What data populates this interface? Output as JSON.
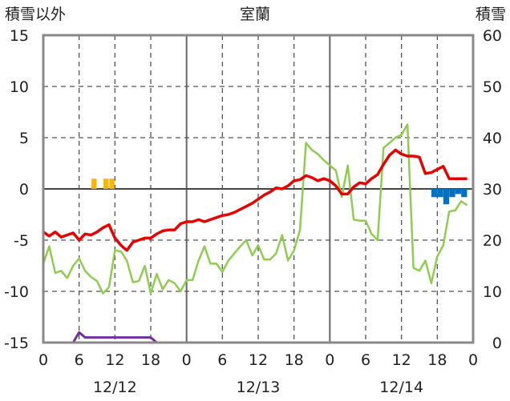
{
  "chart_data": {
    "type": "line",
    "title": "室蘭",
    "ylabel_left": "積雪以外",
    "ylabel_right": "積雪",
    "ylim_left": [
      -15,
      15
    ],
    "ylim_right": [
      0,
      60
    ],
    "yticks_left": [
      "15",
      "10",
      "5",
      "0",
      "-5",
      "-10",
      "-15"
    ],
    "yticks_right": [
      "60",
      "50",
      "40",
      "30",
      "20",
      "10",
      "0"
    ],
    "xlim_hours": [
      0,
      72
    ],
    "xtick_labels": [
      "0",
      "6",
      "12",
      "18",
      "0",
      "6",
      "12",
      "18",
      "0",
      "6",
      "12",
      "18",
      "0"
    ],
    "date_labels": [
      {
        "label": "12/12",
        "hour": 12
      },
      {
        "label": "12/13",
        "hour": 36
      },
      {
        "label": "12/14",
        "hour": 60
      }
    ],
    "grid": true,
    "colors": {
      "temperature": "#e60000",
      "green_series": "#8fcc50",
      "purple_series": "#7030a0",
      "precip_bars": "#ffb400",
      "neg_bars": "#0070c0",
      "grid": "#555555",
      "zero_line": "#444444",
      "frame": "#888888"
    },
    "series": [
      {
        "key": "temperature",
        "axis": "left",
        "x": [
          0,
          1,
          2,
          3,
          4,
          5,
          6,
          7,
          8,
          9,
          10,
          11,
          12,
          13,
          14,
          15,
          16,
          17,
          18,
          19,
          20,
          21,
          22,
          23,
          24,
          25,
          26,
          27,
          28,
          29,
          30,
          31,
          32,
          33,
          34,
          35,
          36,
          37,
          38,
          39,
          40,
          41,
          42,
          43,
          44,
          45,
          46,
          47,
          48,
          49,
          50,
          51,
          52,
          53,
          54,
          55,
          56,
          57,
          58,
          59,
          60,
          61,
          62,
          63,
          64,
          65,
          66,
          67,
          68,
          69,
          70,
          71
        ],
        "y": [
          -4.2,
          -4.6,
          -4.2,
          -4.7,
          -4.5,
          -4.3,
          -5.0,
          -4.4,
          -4.5,
          -4.2,
          -3.8,
          -3.5,
          -4.8,
          -5.5,
          -6.0,
          -5.2,
          -5.0,
          -4.8,
          -4.8,
          -4.4,
          -4.1,
          -4.0,
          -4.0,
          -3.4,
          -3.2,
          -3.2,
          -3.0,
          -3.2,
          -3.0,
          -2.8,
          -2.6,
          -2.5,
          -2.3,
          -2.0,
          -1.7,
          -1.4,
          -1.0,
          -0.6,
          -0.3,
          0.1,
          0.0,
          0.3,
          0.8,
          0.9,
          1.3,
          1.1,
          0.8,
          1.0,
          0.8,
          0.3,
          -0.5,
          -0.5,
          0.2,
          0.6,
          0.5,
          1.0,
          1.4,
          2.4,
          3.3,
          3.8,
          3.4,
          3.2,
          3.2,
          3.1,
          1.5,
          1.6,
          1.9,
          2.2,
          1.0,
          1.0,
          1.0,
          1.0
        ]
      },
      {
        "key": "green_series",
        "axis": "left",
        "x": [
          0,
          1,
          2,
          3,
          4,
          5,
          6,
          7,
          8,
          9,
          10,
          11,
          12,
          13,
          14,
          15,
          16,
          17,
          18,
          19,
          20,
          21,
          22,
          23,
          24,
          25,
          26,
          27,
          28,
          29,
          30,
          31,
          32,
          33,
          34,
          35,
          36,
          37,
          38,
          39,
          40,
          41,
          42,
          43,
          44,
          45,
          46,
          47,
          48,
          49,
          50,
          51,
          52,
          53,
          54,
          55,
          56,
          57,
          58,
          59,
          60,
          61,
          62,
          63,
          64,
          65,
          66,
          67,
          68,
          69,
          70,
          71
        ],
        "y": [
          -7.3,
          -5.6,
          -8.2,
          -8.0,
          -8.7,
          -7.5,
          -6.8,
          -8.0,
          -8.6,
          -9.0,
          -10.2,
          -9.6,
          -6.0,
          -6.1,
          -7.0,
          -9.1,
          -9.0,
          -7.5,
          -10.2,
          -8.3,
          -9.8,
          -8.9,
          -9.2,
          -10.0,
          -8.9,
          -8.9,
          -7.0,
          -5.6,
          -7.3,
          -7.3,
          -8.1,
          -7.0,
          -6.3,
          -5.6,
          -5.0,
          -6.5,
          -5.5,
          -6.9,
          -6.9,
          -6.3,
          -4.5,
          -7.0,
          -6.0,
          -4.0,
          4.5,
          3.8,
          3.4,
          2.8,
          2.3,
          1.8,
          -0.8,
          2.3,
          -3.0,
          -3.1,
          -3.1,
          -4.4,
          -5.0,
          4.0,
          4.5,
          5.0,
          5.3,
          6.3,
          -7.7,
          -8.0,
          -7.0,
          -9.2,
          -6.6,
          -5.5,
          -2.2,
          -2.1,
          -1.2,
          -1.6
        ]
      },
      {
        "key": "purple_series",
        "axis": "right",
        "x": [
          0,
          1,
          2,
          3,
          4,
          5,
          5.5,
          6,
          6.5,
          7,
          8,
          9,
          10,
          11,
          12,
          13,
          14,
          15,
          16,
          17,
          18,
          19,
          20,
          21,
          22,
          23,
          24,
          30,
          36,
          42,
          48,
          54,
          60,
          66,
          72
        ],
        "y": [
          0,
          0,
          0,
          0,
          0,
          0,
          1,
          2,
          1.5,
          1,
          1,
          1,
          1,
          1,
          1,
          1,
          1,
          1,
          1,
          1,
          1,
          0,
          0,
          0,
          0,
          0,
          0,
          0,
          0,
          0,
          0,
          0,
          0,
          0,
          0
        ]
      }
    ],
    "bars_pos": {
      "key": "precip_bars",
      "axis": "left",
      "x": [
        8.5,
        10.5,
        11.5
      ],
      "values": [
        1.0,
        1.0,
        1.0
      ]
    },
    "bars_neg": {
      "key": "neg_bars",
      "axis": "left",
      "x": [
        65.5,
        66.5,
        67.5,
        68.5,
        69.5,
        70.5
      ],
      "values": [
        -0.8,
        -0.8,
        -1.5,
        -0.8,
        -0.5,
        -0.8
      ]
    }
  }
}
